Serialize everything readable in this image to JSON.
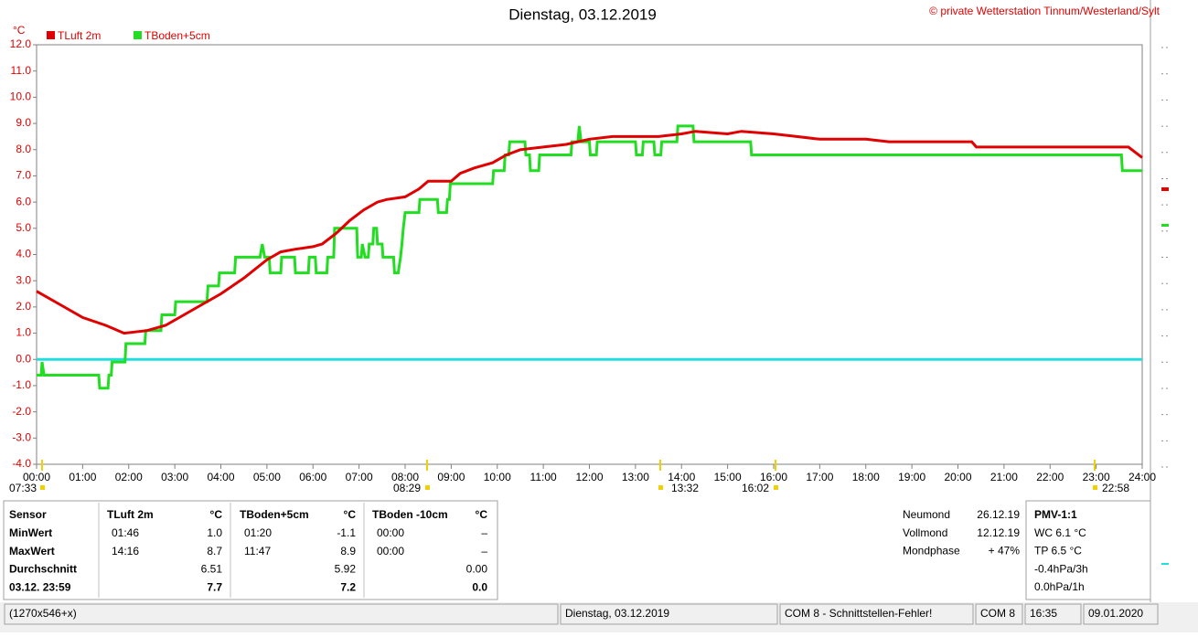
{
  "chart_data": {
    "type": "line",
    "title": "Dienstag, 03.12.2019",
    "subtitle": "© private Wetterstation Tinnum/Westerland/Sylt",
    "y_unit": "°C",
    "xlim": [
      0,
      24
    ],
    "ylim": [
      -4,
      12
    ],
    "xticks": [
      {
        "value": 0,
        "label": "00:00"
      },
      {
        "value": 1,
        "label": "01:00"
      },
      {
        "value": 2,
        "label": "02:00"
      },
      {
        "value": 3,
        "label": "03:00"
      },
      {
        "value": 4,
        "label": "04:00"
      },
      {
        "value": 5,
        "label": "05:00"
      },
      {
        "value": 6,
        "label": "06:00"
      },
      {
        "value": 7,
        "label": "07:00"
      },
      {
        "value": 8,
        "label": "08:00"
      },
      {
        "value": 9,
        "label": "09:00"
      },
      {
        "value": 10,
        "label": "10:00"
      },
      {
        "value": 11,
        "label": "11:00"
      },
      {
        "value": 12,
        "label": "12:00"
      },
      {
        "value": 13,
        "label": "13:00"
      },
      {
        "value": 14,
        "label": "14:00"
      },
      {
        "value": 15,
        "label": "15:00"
      },
      {
        "value": 16,
        "label": "16:00"
      },
      {
        "value": 17,
        "label": "17:00"
      },
      {
        "value": 18,
        "label": "18:00"
      },
      {
        "value": 19,
        "label": "19:00"
      },
      {
        "value": 20,
        "label": "20:00"
      },
      {
        "value": 21,
        "label": "21:00"
      },
      {
        "value": 22,
        "label": "22:00"
      },
      {
        "value": 23,
        "label": "23:00"
      },
      {
        "value": 24,
        "label": "24:00"
      }
    ],
    "yticks": [
      {
        "value": 12,
        "label": "12.0"
      },
      {
        "value": 11,
        "label": "11.0"
      },
      {
        "value": 10,
        "label": "10.0"
      },
      {
        "value": 9,
        "label": "9.0"
      },
      {
        "value": 8,
        "label": "8.0"
      },
      {
        "value": 7,
        "label": "7.0"
      },
      {
        "value": 6,
        "label": "6.0"
      },
      {
        "value": 5,
        "label": "5.0"
      },
      {
        "value": 4,
        "label": "4.0"
      },
      {
        "value": 3,
        "label": "3.0"
      },
      {
        "value": 2,
        "label": "2.0"
      },
      {
        "value": 1,
        "label": "1.0"
      },
      {
        "value": 0,
        "label": "0.0"
      },
      {
        "value": -1,
        "label": "-1.0"
      },
      {
        "value": -2,
        "label": "-2.0"
      },
      {
        "value": -3,
        "label": "-3.0"
      },
      {
        "value": -4,
        "label": "-4.0"
      }
    ],
    "series": [
      {
        "name": "TLuft 2m",
        "color": "#e00000",
        "x": [
          0,
          0.5,
          1,
          1.5,
          1.9,
          2.4,
          2.8,
          3.2,
          3.6,
          4,
          4.5,
          5,
          5.3,
          5.6,
          6,
          6.2,
          6.5,
          6.8,
          7.1,
          7.4,
          7.6,
          8,
          8.3,
          8.5,
          9,
          9.2,
          9.5,
          9.9,
          10.2,
          10.5,
          11,
          11.5,
          12,
          12.5,
          13,
          13.5,
          14,
          14.3,
          15,
          15.3,
          16,
          16.5,
          17,
          18,
          18.5,
          20.3,
          20.4,
          23.7,
          24
        ],
        "values": [
          2.6,
          2.1,
          1.6,
          1.3,
          1.0,
          1.1,
          1.3,
          1.7,
          2.1,
          2.5,
          3.1,
          3.8,
          4.1,
          4.2,
          4.3,
          4.4,
          4.8,
          5.3,
          5.7,
          6.0,
          6.1,
          6.2,
          6.5,
          6.8,
          6.8,
          7.1,
          7.3,
          7.5,
          7.8,
          8.0,
          8.1,
          8.2,
          8.4,
          8.5,
          8.5,
          8.5,
          8.6,
          8.7,
          8.6,
          8.7,
          8.6,
          8.5,
          8.4,
          8.4,
          8.3,
          8.3,
          8.1,
          8.1,
          7.7
        ]
      },
      {
        "name": "TBoden+5cm",
        "color": "#22dd22",
        "x": [
          0,
          0.1,
          0.12,
          0.16,
          1.35,
          1.37,
          1.55,
          1.57,
          1.62,
          1.64,
          1.92,
          1.94,
          2.35,
          2.37,
          2.7,
          2.72,
          3,
          3.02,
          3.7,
          3.72,
          3.95,
          3.97,
          4.3,
          4.32,
          4.85,
          4.9,
          4.95,
          5.05,
          5.07,
          5.3,
          5.32,
          5.6,
          5.62,
          5.9,
          5.92,
          6.05,
          6.07,
          6.3,
          6.32,
          6.45,
          6.47,
          6.95,
          6.97,
          7.05,
          7.07,
          7.13,
          7.2,
          7.22,
          7.3,
          7.32,
          7.38,
          7.4,
          7.5,
          7.52,
          7.75,
          7.77,
          7.85,
          7.9,
          7.93,
          7.96,
          8,
          8.3,
          8.32,
          8.7,
          8.72,
          8.9,
          8.92,
          8.96,
          8.98,
          9.9,
          9.92,
          10.15,
          10.17,
          10.25,
          10.27,
          10.6,
          10.62,
          10.7,
          10.72,
          10.9,
          10.92,
          11.6,
          11.62,
          11.75,
          11.78,
          11.82,
          12,
          12.02,
          12.15,
          12.17,
          13,
          13.02,
          13.15,
          13.17,
          13.4,
          13.42,
          13.55,
          13.57,
          13.9,
          13.92,
          14.25,
          14.27,
          15.5,
          15.52,
          23.55,
          23.57,
          24
        ],
        "values": [
          -0.6,
          -0.6,
          -0.1,
          -0.6,
          -0.6,
          -1.1,
          -1.1,
          -0.6,
          -0.6,
          -0.1,
          -0.1,
          0.6,
          0.6,
          1.1,
          1.1,
          1.7,
          1.7,
          2.2,
          2.2,
          2.8,
          2.8,
          3.3,
          3.3,
          3.9,
          3.9,
          4.4,
          3.9,
          3.9,
          3.3,
          3.3,
          3.9,
          3.9,
          3.3,
          3.3,
          3.9,
          3.9,
          3.3,
          3.3,
          3.9,
          3.9,
          5.0,
          5.0,
          3.9,
          3.9,
          4.4,
          3.9,
          3.9,
          4.4,
          4.4,
          5.0,
          5.0,
          4.4,
          4.4,
          3.9,
          3.9,
          3.3,
          3.3,
          3.9,
          4.4,
          5.0,
          5.6,
          5.6,
          6.1,
          6.1,
          5.6,
          5.6,
          6.1,
          6.1,
          6.7,
          6.7,
          7.2,
          7.2,
          7.8,
          7.8,
          8.3,
          8.3,
          7.8,
          7.8,
          7.2,
          7.2,
          7.8,
          7.8,
          8.3,
          8.3,
          8.9,
          8.3,
          8.3,
          7.8,
          7.8,
          8.3,
          8.3,
          7.8,
          7.8,
          8.3,
          8.3,
          7.8,
          7.8,
          8.3,
          8.3,
          8.9,
          8.9,
          8.3,
          8.3,
          7.8,
          7.8,
          7.2,
          7.2
        ]
      },
      {
        "color": "#22dddd",
        "x": [
          0,
          24
        ],
        "values": [
          0,
          0
        ]
      }
    ],
    "annotations": [
      "07:33",
      "08:29",
      "13:32",
      "16:02",
      "22:58"
    ]
  },
  "table": {
    "header": [
      "Sensor",
      "TLuft 2m",
      "°C",
      "TBoden+5cm",
      "°C",
      "TBoden -10cm",
      "°C"
    ],
    "rows": [
      [
        "MinWert",
        "01:46",
        "1.0",
        "01:20",
        "-1.1",
        "00:00",
        "–"
      ],
      [
        "MaxWert",
        "14:16",
        "8.7",
        "11:47",
        "8.9",
        "00:00",
        "–"
      ],
      [
        "Durchschnitt",
        null,
        "6.51",
        null,
        "5.92",
        null,
        "0.00"
      ],
      [
        "03.12. 23:59",
        null,
        "7.7",
        null,
        "7.2",
        null,
        "0.0"
      ]
    ]
  },
  "moon": [
    [
      "Neumond",
      "26.12.19"
    ],
    [
      "Vollmond",
      "12.12.19"
    ],
    [
      "Mondphase",
      "+ 47%"
    ]
  ],
  "pmv": [
    "PMV-1:1",
    "WC 6.1 °C",
    "TP 6.5 °C",
    "-0.4hPa/3h",
    "0.0hPa/1h"
  ],
  "status_bar": [
    "(1270x546+x)",
    "Dienstag, 03.12.2019",
    "COM 8 - Schnittstellen-Fehler!",
    "COM 8",
    "16:35",
    "09.01.2020"
  ]
}
